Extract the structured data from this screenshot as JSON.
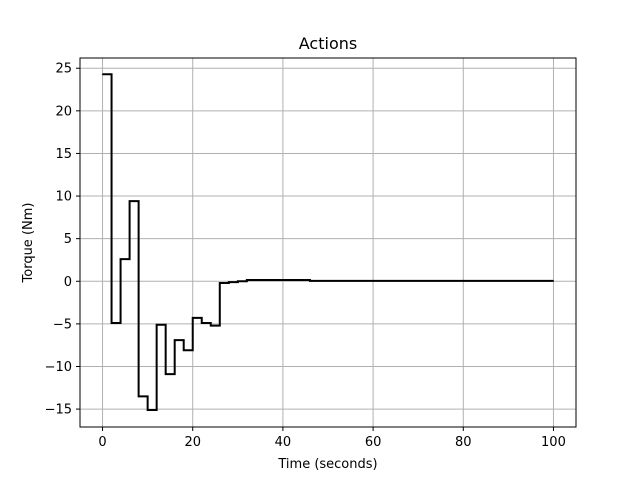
{
  "chart_data": {
    "type": "line",
    "drawstyle": "steps-post",
    "title": "Actions",
    "xlabel": "Time (seconds)",
    "ylabel": "Torque (Nm)",
    "xlim": [
      -5,
      105
    ],
    "ylim": [
      -17.1,
      26.2
    ],
    "xticks": [
      0,
      20,
      40,
      60,
      80,
      100
    ],
    "xtick_labels": [
      "0",
      "20",
      "40",
      "60",
      "80",
      "100"
    ],
    "yticks": [
      -15,
      -10,
      -5,
      0,
      5,
      10,
      15,
      20,
      25
    ],
    "ytick_labels": [
      "−15",
      "−10",
      "−5",
      "0",
      "5",
      "10",
      "15",
      "20",
      "25"
    ],
    "grid": true,
    "line_color": "#000000",
    "series": [
      {
        "x": [
          0,
          2,
          4,
          6,
          8,
          10,
          12,
          14,
          16,
          18,
          20,
          22,
          24,
          26,
          28,
          30,
          32,
          34,
          36,
          38,
          40,
          42,
          44,
          46,
          100
        ],
        "y": [
          24.3,
          -4.9,
          2.6,
          9.4,
          -13.5,
          -15.1,
          -5.1,
          -10.9,
          -6.9,
          -8.1,
          -4.3,
          -4.9,
          -5.2,
          -0.2,
          -0.1,
          0.0,
          0.15,
          0.15,
          0.15,
          0.15,
          0.15,
          0.15,
          0.15,
          0.05,
          0.05
        ]
      }
    ]
  }
}
